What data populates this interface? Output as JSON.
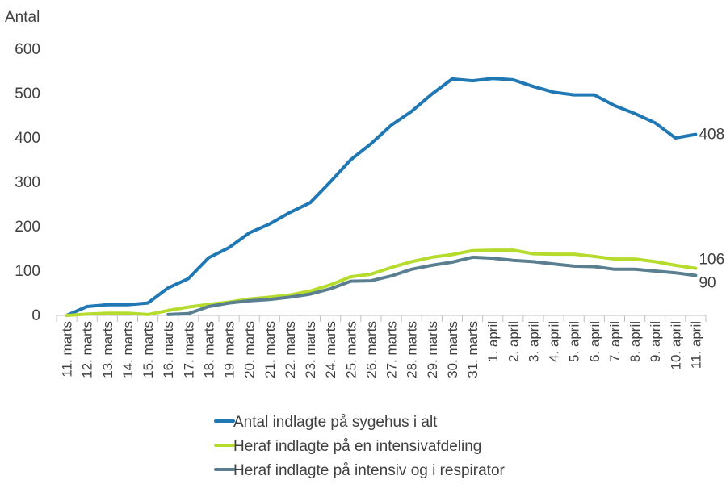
{
  "chart_data": {
    "type": "line",
    "ylabel": "Antal",
    "ylim": [
      0,
      600
    ],
    "yticks": [
      0,
      100,
      200,
      300,
      400,
      500,
      600
    ],
    "grid": false,
    "legend_position": "bottom",
    "categories": [
      "11. marts",
      "12. marts",
      "13. marts",
      "14. marts",
      "15. marts",
      "16. marts",
      "17. marts",
      "18. marts",
      "19. marts",
      "20. marts",
      "21. marts",
      "22. marts",
      "23. marts",
      "24. marts",
      "25. marts",
      "26. marts",
      "27. marts",
      "28. marts",
      "29. marts",
      "30. marts",
      "31. marts",
      "1. april",
      "2. april",
      "3. april",
      "4. april",
      "5. april",
      "6. april",
      "7. april",
      "8. april",
      "9. april",
      "10. april",
      "11. april"
    ],
    "series": [
      {
        "name": "Antal indlagte på sygehus i alt",
        "color": "#1f77b4",
        "values": [
          0,
          20,
          24,
          24,
          28,
          62,
          83,
          130,
          153,
          186,
          206,
          232,
          254,
          301,
          351,
          387,
          429,
          460,
          499,
          533,
          529,
          534,
          531,
          516,
          503,
          497,
          497,
          473,
          455,
          434,
          400,
          408
        ],
        "end_label": "408"
      },
      {
        "name": "Heraf indlagte på en intensivafdeling",
        "color": "#b5dc2d",
        "values": [
          0,
          3,
          5,
          5,
          2,
          11,
          19,
          25,
          30,
          37,
          41,
          46,
          55,
          69,
          87,
          93,
          108,
          121,
          131,
          137,
          146,
          147,
          147,
          139,
          138,
          138,
          133,
          127,
          127,
          121,
          113,
          106
        ],
        "end_label": "106"
      },
      {
        "name": "Heraf indlagte på intensiv og i respirator",
        "color": "#5a7f91",
        "start_index": 5,
        "values": [
          null,
          null,
          null,
          null,
          null,
          2,
          4,
          20,
          28,
          33,
          36,
          41,
          48,
          60,
          77,
          78,
          89,
          104,
          113,
          120,
          131,
          129,
          124,
          121,
          116,
          111,
          110,
          104,
          104,
          100,
          96,
          90
        ],
        "end_label": "90"
      }
    ]
  }
}
